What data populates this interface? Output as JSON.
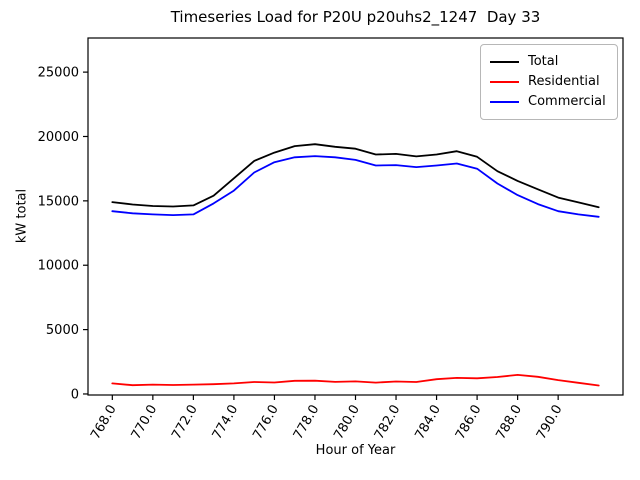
{
  "chart_data": {
    "type": "line",
    "title": "Timeseries Load for P20U p20uhs2_1247  Day 33",
    "xlabel": "Hour of Year",
    "ylabel": "kW total",
    "grid": false,
    "legend_position": "upper right",
    "tick_label_rotation": 60,
    "xlim": [
      766.8,
      793.2
    ],
    "ylim": [
      -80,
      27650
    ],
    "x": [
      768,
      769,
      770,
      771,
      772,
      773,
      774,
      775,
      776,
      777,
      778,
      779,
      780,
      781,
      782,
      783,
      784,
      785,
      786,
      787,
      788,
      789,
      790,
      791,
      792
    ],
    "series": [
      {
        "name": "Total",
        "color": "#000000",
        "values": [
          14900,
          14720,
          14600,
          14560,
          14650,
          15400,
          16750,
          18100,
          18750,
          19250,
          19400,
          19200,
          19050,
          18600,
          18650,
          18450,
          18600,
          18860,
          18420,
          17300,
          16550,
          15900,
          15250,
          14880,
          14510
        ]
      },
      {
        "name": "Residential",
        "color": "#ff0000",
        "values": [
          820,
          680,
          730,
          700,
          730,
          760,
          820,
          930,
          890,
          1020,
          1030,
          940,
          980,
          880,
          970,
          930,
          1150,
          1250,
          1220,
          1320,
          1480,
          1330,
          1080,
          870,
          660
        ]
      },
      {
        "name": "Commercial",
        "color": "#0000ff",
        "values": [
          14200,
          14030,
          13950,
          13890,
          13950,
          14800,
          15800,
          17200,
          18000,
          18380,
          18480,
          18380,
          18180,
          17750,
          17780,
          17620,
          17750,
          17900,
          17500,
          16350,
          15450,
          14750,
          14200,
          13950,
          13760
        ]
      }
    ],
    "xticks": [
      768,
      770,
      772,
      774,
      776,
      778,
      780,
      782,
      784,
      786,
      788,
      790
    ],
    "xtick_labels": [
      "768.0",
      "770.0",
      "772.0",
      "774.0",
      "776.0",
      "778.0",
      "780.0",
      "782.0",
      "784.0",
      "786.0",
      "788.0",
      "790.0"
    ],
    "yticks": [
      0,
      5000,
      10000,
      15000,
      20000,
      25000
    ],
    "ytick_labels": [
      "0",
      "5000",
      "10000",
      "15000",
      "20000",
      "25000"
    ]
  }
}
